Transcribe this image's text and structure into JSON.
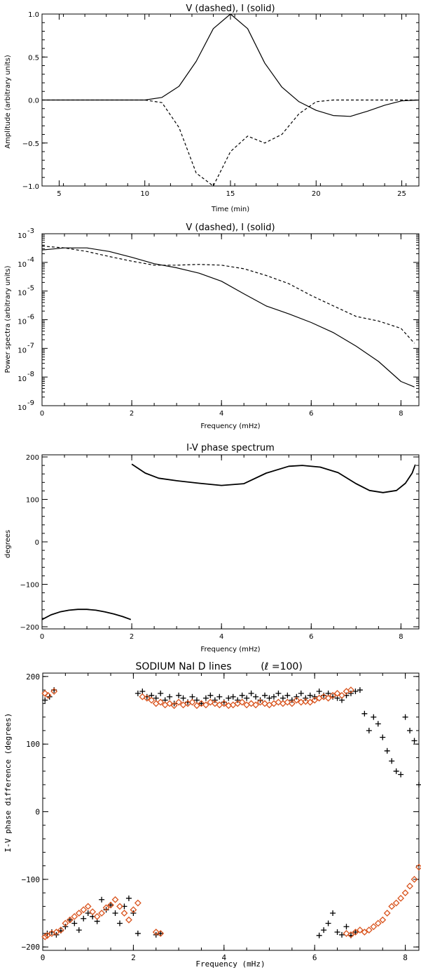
{
  "chart_data": [
    {
      "type": "line",
      "title": "V (dashed), I (solid)",
      "xlabel": "Time (min)",
      "ylabel": "Amplitude (arbitrary units)",
      "xlim": [
        4,
        26
      ],
      "ylim": [
        -1.0,
        1.0
      ],
      "xticks": [
        5,
        10,
        15,
        20,
        25
      ],
      "yticks": [
        -1.0,
        -0.5,
        0.0,
        0.5,
        1.0
      ],
      "xtick_labels": [
        "5",
        "10",
        "15",
        "20",
        "25"
      ],
      "ytick_labels": [
        "−1.0",
        "−0.5",
        "0.0",
        "0.5",
        "1.0"
      ],
      "series": [
        {
          "name": "I (solid)",
          "style": "solid",
          "x": [
            4,
            10,
            11,
            12,
            13,
            14,
            15,
            16,
            17,
            18,
            19,
            20,
            21,
            22,
            23,
            24,
            25,
            26
          ],
          "y": [
            0.0,
            0.0,
            0.03,
            0.16,
            0.45,
            0.83,
            1.0,
            0.83,
            0.43,
            0.15,
            -0.02,
            -0.12,
            -0.18,
            -0.19,
            -0.13,
            -0.06,
            -0.01,
            0.0
          ]
        },
        {
          "name": "V (dashed)",
          "style": "dashed",
          "x": [
            4,
            10,
            11,
            12,
            13,
            14,
            15,
            16,
            17,
            18,
            19,
            20,
            21,
            22,
            23,
            24,
            25,
            26
          ],
          "y": [
            0.0,
            0.0,
            -0.03,
            -0.32,
            -0.85,
            -1.0,
            -0.6,
            -0.42,
            -0.5,
            -0.4,
            -0.16,
            -0.02,
            0.0,
            0.0,
            0.0,
            0.0,
            0.0,
            0.0
          ]
        }
      ]
    },
    {
      "type": "line",
      "title": "V (dashed), I (solid)",
      "xlabel": "Frequency (mHz)",
      "ylabel": "Power spectra (arbitrary units)",
      "xlim": [
        0,
        8.4
      ],
      "ylim": [
        1e-09,
        0.001
      ],
      "yscale": "log",
      "xticks": [
        0,
        2,
        4,
        6,
        8
      ],
      "xtick_labels": [
        "0",
        "2",
        "4",
        "6",
        "8"
      ],
      "yticks": [
        -9,
        -8,
        -7,
        -6,
        -5,
        -4,
        -3
      ],
      "ytick_labels": [
        "10",
        "10",
        "10",
        "10",
        "10",
        "10",
        "10"
      ],
      "ytick_exponents": [
        "-9",
        "-8",
        "-7",
        "-6",
        "-5",
        "-4",
        "-3"
      ],
      "series": [
        {
          "name": "I (solid)",
          "style": "solid",
          "x": [
            0,
            0.5,
            1.0,
            1.5,
            2.0,
            2.5,
            3.0,
            3.5,
            4.0,
            4.5,
            5.0,
            5.5,
            6.0,
            6.5,
            7.0,
            7.5,
            8.0,
            8.3
          ],
          "y": [
            0.00027,
            0.00032,
            0.00032,
            0.00024,
            0.00015,
            9e-05,
            6.5e-05,
            4.2e-05,
            2.2e-05,
            8e-06,
            3e-06,
            1.6e-06,
            8e-07,
            3.5e-07,
            1.2e-07,
            3.5e-08,
            7e-09,
            4.5e-09
          ]
        },
        {
          "name": "V (dashed)",
          "style": "dashed",
          "x": [
            0,
            0.5,
            1.0,
            1.5,
            2.0,
            2.5,
            3.0,
            3.5,
            4.0,
            4.5,
            5.0,
            5.5,
            6.0,
            6.5,
            7.0,
            7.5,
            8.0,
            8.3
          ],
          "y": [
            0.00037,
            0.00032,
            0.00024,
            0.00016,
            0.00011,
            8e-05,
            8e-05,
            8.5e-05,
            8e-05,
            6e-05,
            3.5e-05,
            1.8e-05,
            7e-06,
            3e-06,
            1.3e-06,
            9e-07,
            5e-07,
            1.5e-07
          ]
        }
      ]
    },
    {
      "type": "line",
      "title": "I-V phase spectrum",
      "xlabel": "Frequency (mHz)",
      "ylabel": "degrees",
      "xlim": [
        0,
        8.4
      ],
      "ylim": [
        -205,
        205
      ],
      "xticks": [
        0,
        2,
        4,
        6,
        8
      ],
      "xtick_labels": [
        "0",
        "2",
        "4",
        "6",
        "8"
      ],
      "yticks": [
        -200,
        -100,
        0,
        100,
        200
      ],
      "ytick_labels": [
        "−200",
        "−100",
        "0",
        "100",
        "200"
      ],
      "series": [
        {
          "name": "",
          "style": "solid",
          "segments": [
            {
              "x": [
                0,
                0.2,
                0.4,
                0.6,
                0.8,
                1.0,
                1.2,
                1.4,
                1.6,
                1.8,
                1.98
              ],
              "y": [
                -183,
                -172,
                -165,
                -161,
                -159,
                -159,
                -161,
                -165,
                -170,
                -176,
                -183
              ]
            },
            {
              "x": [
                2.0,
                2.3,
                2.6,
                3.0,
                3.5,
                4.0,
                4.5,
                5.0,
                5.5,
                5.8,
                6.2,
                6.6,
                7.0,
                7.3,
                7.6,
                7.9,
                8.1,
                8.25,
                8.32
              ],
              "y": [
                183,
                162,
                150,
                144,
                138,
                133,
                137,
                162,
                178,
                180,
                176,
                163,
                137,
                121,
                116,
                121,
                138,
                162,
                182
              ]
            }
          ]
        }
      ]
    },
    {
      "type": "scatter",
      "title": "SODIUM NaI D lines",
      "title_annotation": "(ℓ =100)",
      "xlabel": "Frequency (mHz)",
      "ylabel": "I-V phase difference (degrees)",
      "xlim": [
        0,
        8.3
      ],
      "ylim": [
        -205,
        205
      ],
      "xticks": [
        0,
        2,
        4,
        6,
        8
      ],
      "xtick_labels": [
        "0",
        "2",
        "4",
        "6",
        "8"
      ],
      "yticks": [
        -200,
        -100,
        0,
        100,
        200
      ],
      "ytick_labels": [
        "−200",
        "−100",
        "0",
        "100",
        "200"
      ],
      "series": [
        {
          "name": "",
          "marker": "plus",
          "color": "#000000",
          "x": [
            0.1,
            0.2,
            0.3,
            0.4,
            0.5,
            0.6,
            0.7,
            0.8,
            0.9,
            1.0,
            1.1,
            1.2,
            1.3,
            1.4,
            1.5,
            1.6,
            1.7,
            1.8,
            1.9,
            2.0,
            2.1,
            2.5,
            2.6,
            6.1,
            6.2,
            6.3,
            6.4,
            6.5,
            6.6,
            6.7,
            6.8,
            6.9,
            7.0,
            7.1,
            7.2,
            7.3,
            7.4,
            7.5,
            7.6,
            7.7,
            7.8,
            7.9,
            8.0,
            8.1,
            8.2,
            8.3,
            0.05,
            0.15,
            0.25
          ],
          "y": [
            -180,
            -178,
            -182,
            -176,
            -170,
            -160,
            -165,
            -175,
            -158,
            -150,
            -155,
            -162,
            -130,
            -145,
            -138,
            -150,
            -165,
            -140,
            -128,
            -150,
            -180,
            -182,
            -180,
            -183,
            -175,
            -165,
            -150,
            -178,
            -182,
            -170,
            -183,
            -178,
            180,
            145,
            120,
            140,
            130,
            110,
            90,
            75,
            60,
            55,
            140,
            120,
            105,
            40,
            165,
            170,
            180
          ]
        },
        {
          "name": "",
          "marker": "plus",
          "color": "#000000",
          "x": [
            2.1,
            2.2,
            2.3,
            2.4,
            2.5,
            2.6,
            2.7,
            2.8,
            2.9,
            3.0,
            3.1,
            3.2,
            3.3,
            3.4,
            3.5,
            3.6,
            3.7,
            3.8,
            3.9,
            4.0,
            4.1,
            4.2,
            4.3,
            4.4,
            4.5,
            4.6,
            4.7,
            4.8,
            4.9,
            5.0,
            5.1,
            5.2,
            5.3,
            5.4,
            5.5,
            5.6,
            5.7,
            5.8,
            5.9,
            6.0,
            6.1,
            6.2,
            6.3,
            6.4,
            6.5,
            6.6,
            6.7,
            6.8,
            6.9
          ],
          "y": [
            175,
            178,
            170,
            172,
            168,
            175,
            165,
            170,
            160,
            172,
            168,
            162,
            170,
            165,
            160,
            168,
            172,
            165,
            170,
            162,
            168,
            170,
            165,
            172,
            168,
            175,
            170,
            165,
            172,
            168,
            170,
            175,
            168,
            172,
            165,
            170,
            175,
            168,
            172,
            170,
            178,
            172,
            175,
            170,
            168,
            165,
            172,
            175,
            178
          ]
        },
        {
          "name": "",
          "marker": "diamond",
          "color": "#d9541e",
          "x": [
            0.05,
            0.1,
            0.2,
            0.3,
            0.4,
            0.5,
            0.6,
            0.7,
            0.8,
            0.9,
            1.0,
            1.1,
            1.2,
            1.3,
            1.4,
            1.5,
            1.6,
            1.7,
            1.8,
            1.9,
            2.0,
            2.1,
            2.5,
            2.6,
            6.7,
            6.8,
            6.9,
            7.0,
            7.1,
            7.2,
            7.3,
            7.4,
            7.5,
            7.6,
            7.7,
            7.8,
            7.9,
            8.0,
            8.1,
            8.2,
            8.3,
            0.05,
            0.12,
            0.25
          ],
          "y": [
            -185,
            -183,
            -180,
            -178,
            -175,
            -165,
            -160,
            -155,
            -150,
            -145,
            -140,
            -148,
            -155,
            -150,
            -142,
            -138,
            -130,
            -140,
            -150,
            -160,
            -145,
            -135,
            -178,
            -180,
            -180,
            -182,
            -178,
            -175,
            -178,
            -175,
            -170,
            -165,
            -160,
            -150,
            -140,
            -135,
            -128,
            -120,
            -110,
            -100,
            -82,
            175,
            172,
            178
          ]
        },
        {
          "name": "",
          "marker": "diamond",
          "color": "#d9541e",
          "x": [
            2.2,
            2.3,
            2.4,
            2.5,
            2.6,
            2.7,
            2.8,
            2.9,
            3.0,
            3.1,
            3.2,
            3.3,
            3.4,
            3.5,
            3.6,
            3.7,
            3.8,
            3.9,
            4.0,
            4.1,
            4.2,
            4.3,
            4.4,
            4.5,
            4.6,
            4.7,
            4.8,
            4.9,
            5.0,
            5.1,
            5.2,
            5.3,
            5.4,
            5.5,
            5.6,
            5.7,
            5.8,
            5.9,
            6.0,
            6.1,
            6.2,
            6.3,
            6.4,
            6.5,
            6.6,
            6.7,
            6.8
          ],
          "y": [
            170,
            168,
            165,
            160,
            162,
            158,
            160,
            157,
            162,
            158,
            160,
            162,
            157,
            160,
            158,
            162,
            160,
            158,
            160,
            157,
            158,
            160,
            162,
            158,
            160,
            158,
            162,
            160,
            158,
            160,
            162,
            160,
            162,
            160,
            165,
            162,
            163,
            162,
            165,
            168,
            170,
            168,
            172,
            175,
            172,
            178,
            180
          ]
        }
      ]
    }
  ]
}
